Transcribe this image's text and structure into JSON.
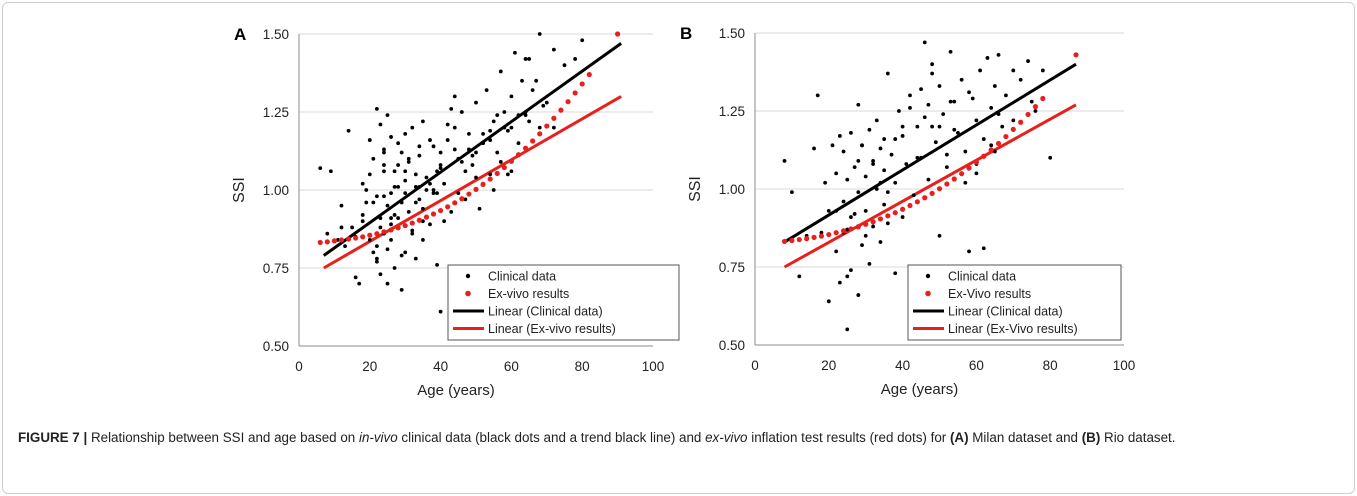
{
  "chart_data": [
    {
      "type": "scatter",
      "panel_letter": "A",
      "ylabel": "SSI",
      "xlabel": "Age (years)",
      "xlim": [
        0,
        100
      ],
      "ylim": [
        0.5,
        1.5
      ],
      "x_ticks": [
        "0",
        "20",
        "40",
        "60",
        "80",
        "100"
      ],
      "y_ticks": [
        "0.50",
        "0.75",
        "1.00",
        "1.25",
        "1.50"
      ],
      "grid": "horizontal",
      "legend_position": "bottom-right",
      "legend": [
        "Clinical data",
        "Ex-vivo results",
        "Linear (Clinical data)",
        "Linear (Ex-vivo results)"
      ],
      "series": [
        {
          "name": "Clinical data",
          "kind": "points",
          "color": "#000000",
          "x": [
            6,
            8,
            9,
            11,
            12,
            13,
            14,
            15,
            16,
            17,
            18,
            18,
            19,
            20,
            20,
            21,
            21,
            22,
            22,
            22,
            23,
            23,
            23,
            24,
            24,
            24,
            25,
            25,
            25,
            26,
            26,
            26,
            27,
            27,
            27,
            28,
            28,
            28,
            29,
            29,
            30,
            30,
            30,
            31,
            31,
            32,
            32,
            33,
            33,
            34,
            34,
            35,
            35,
            36,
            37,
            37,
            38,
            39,
            40,
            40,
            41,
            42,
            43,
            44,
            45,
            46,
            47,
            48,
            49,
            50,
            51,
            52,
            53,
            54,
            55,
            56,
            57,
            58,
            59,
            60,
            61,
            62,
            63,
            64,
            65,
            66,
            68,
            70,
            72,
            75,
            78,
            80,
            24,
            28,
            33,
            38,
            43,
            47,
            52,
            57,
            62,
            67,
            72,
            18,
            22,
            26,
            30,
            35,
            40,
            45,
            50,
            55,
            60,
            65,
            12,
            16,
            20,
            24,
            28,
            32,
            36,
            40,
            44,
            48,
            52,
            56,
            60,
            64,
            68,
            22,
            26,
            30,
            34,
            38,
            42,
            46,
            50,
            54,
            58,
            21,
            23,
            25,
            27,
            29,
            31,
            33,
            35,
            37,
            39,
            41,
            19,
            24,
            29,
            34,
            39,
            44,
            49,
            54,
            59,
            64,
            69
          ],
          "y": [
            1.07,
            0.86,
            1.06,
            0.84,
            0.95,
            0.82,
            1.19,
            0.88,
            0.72,
            0.7,
            1.02,
            0.9,
            0.96,
            1.16,
            0.84,
            1.1,
            0.8,
            1.26,
            0.77,
            0.98,
            1.21,
            0.91,
            0.73,
            1.08,
            0.86,
            1.13,
            0.95,
            0.7,
            1.24,
            1.17,
            0.84,
            0.99,
            1.06,
            0.92,
            0.75,
            1.01,
            0.88,
            1.15,
            0.68,
            0.96,
            1.18,
            1.03,
            0.8,
            0.93,
            1.1,
            0.86,
            1.2,
            1.05,
            0.78,
            0.97,
            1.14,
            1.22,
            0.9,
            1.04,
            0.89,
            1.16,
            0.99,
            0.76,
            1.08,
            0.61,
            1.02,
            1.21,
            0.93,
            1.3,
            1.1,
            1.25,
            0.97,
            1.18,
            1.08,
            1.28,
            0.94,
            1.15,
            1.32,
            1.05,
            1.22,
            1.12,
            1.38,
            1.2,
            1.05,
            1.3,
            1.44,
            1.15,
            1.35,
            1.25,
            1.42,
            1.32,
            1.5,
            1.28,
            1.45,
            1.4,
            1.42,
            1.48,
            0.98,
            1.08,
            1.01,
            1.14,
            1.26,
            1.06,
            1.18,
            1.09,
            1.24,
            1.35,
            1.2,
            0.92,
            0.78,
            0.89,
            0.99,
            0.94,
            1.12,
            0.99,
            1.04,
            1.0,
            1.2,
            1.22,
            0.88,
            0.85,
            1.05,
            1.12,
            0.91,
            0.87,
            1.0,
            1.07,
            1.2,
            1.13,
            1.02,
            1.24,
            1.06,
            1.42,
            1.2,
            0.82,
            0.91,
            1.06,
            1.11,
            1.0,
            1.16,
            1.09,
            1.12,
            1.19,
            1.25,
            0.96,
            0.88,
            0.81,
            1.01,
            0.79,
            1.09,
            0.96,
            0.84,
            1.02,
            0.99,
            0.9,
            1.0,
            1.06,
            1.12,
            1.01,
            1.06,
            1.13,
            1.11,
            1.16,
            1.19,
            1.24,
            1.27
          ]
        },
        {
          "name": "Ex-vivo results",
          "kind": "points",
          "color": "#e8201c",
          "x": [
            6,
            8,
            10,
            12,
            14,
            16,
            18,
            20,
            22,
            24,
            26,
            28,
            30,
            32,
            34,
            36,
            38,
            40,
            42,
            44,
            46,
            48,
            50,
            52,
            54,
            56,
            58,
            60,
            62,
            64,
            66,
            68,
            70,
            72,
            74,
            76,
            78,
            80,
            82,
            90
          ],
          "y": [
            0.832,
            0.834,
            0.837,
            0.84,
            0.843,
            0.846,
            0.85,
            0.855,
            0.86,
            0.866,
            0.872,
            0.879,
            0.886,
            0.894,
            0.903,
            0.913,
            0.923,
            0.934,
            0.946,
            0.959,
            0.972,
            0.987,
            1.002,
            1.018,
            1.035,
            1.053,
            1.072,
            1.092,
            1.113,
            1.134,
            1.157,
            1.18,
            1.205,
            1.23,
            1.256,
            1.283,
            1.311,
            1.34,
            1.37,
            1.5
          ]
        },
        {
          "name": "Linear (Clinical data)",
          "kind": "line",
          "color": "#000000",
          "x": [
            7,
            91
          ],
          "y": [
            0.79,
            1.47
          ]
        },
        {
          "name": "Linear (Ex-vivo results)",
          "kind": "line",
          "color": "#e8201c",
          "x": [
            7,
            91
          ],
          "y": [
            0.75,
            1.3
          ]
        }
      ]
    },
    {
      "type": "scatter",
      "panel_letter": "B",
      "ylabel": "SSI",
      "xlabel": "Age (years)",
      "xlim": [
        0,
        100
      ],
      "ylim": [
        0.5,
        1.5
      ],
      "x_ticks": [
        "0",
        "20",
        "40",
        "60",
        "80",
        "100"
      ],
      "y_ticks": [
        "0.50",
        "0.75",
        "1.00",
        "1.25",
        "1.50"
      ],
      "grid": "horizontal",
      "legend_position": "bottom-right",
      "legend": [
        "Clinical data",
        "Ex-Vivo results",
        "Linear (Clinical data)",
        "Linear (Ex-Vivo results)"
      ],
      "series": [
        {
          "name": "Clinical data",
          "kind": "points",
          "color": "#000000",
          "x": [
            8,
            10,
            12,
            14,
            16,
            17,
            18,
            19,
            20,
            20,
            21,
            22,
            22,
            23,
            23,
            24,
            24,
            25,
            25,
            25,
            26,
            26,
            27,
            27,
            28,
            28,
            28,
            29,
            29,
            30,
            30,
            31,
            31,
            32,
            32,
            33,
            33,
            34,
            34,
            35,
            35,
            36,
            36,
            37,
            38,
            38,
            39,
            40,
            40,
            41,
            42,
            43,
            44,
            45,
            46,
            47,
            47,
            48,
            49,
            50,
            50,
            51,
            52,
            53,
            54,
            55,
            56,
            57,
            58,
            59,
            60,
            61,
            62,
            63,
            64,
            65,
            66,
            67,
            68,
            70,
            72,
            74,
            76,
            78,
            25,
            30,
            35,
            40,
            45,
            50,
            55,
            60,
            65,
            70,
            75,
            80,
            22,
            28,
            34,
            46,
            52,
            58,
            64,
            26,
            32,
            38,
            44,
            48,
            54,
            60,
            66,
            24,
            29,
            36,
            42,
            48,
            53,
            57,
            62
          ],
          "y": [
            1.09,
            0.99,
            0.72,
            0.85,
            1.13,
            1.3,
            0.86,
            1.02,
            0.93,
            0.64,
            1.14,
            1.05,
            0.8,
            1.17,
            0.7,
            0.96,
            1.12,
            0.55,
            0.87,
            1.03,
            1.18,
            0.74,
            0.92,
            1.07,
            1.27,
            0.66,
            0.99,
            1.14,
            0.82,
            1.04,
            0.93,
            1.19,
            0.76,
            1.08,
            0.88,
            1.22,
            1.0,
            0.83,
            1.13,
            1.06,
            0.95,
            1.37,
            0.89,
            1.11,
            1.02,
            0.73,
            1.25,
            1.17,
            0.91,
            1.08,
            1.3,
            0.98,
            1.2,
            1.1,
            1.47,
            1.03,
            1.27,
            1.4,
            1.15,
            1.33,
            0.85,
            1.24,
            1.07,
            1.44,
            1.28,
            1.18,
            1.35,
            1.12,
            0.8,
            1.29,
            1.22,
            1.38,
            1.16,
            1.42,
            1.26,
            1.33,
            1.43,
            1.2,
            1.3,
            1.38,
            1.35,
            1.41,
            1.25,
            1.38,
            0.72,
            0.85,
            1.16,
            1.2,
            1.32,
            1.2,
            0.75,
            1.05,
            1.12,
            1.22,
            1.28,
            1.1,
            0.93,
            1.09,
            1.02,
            1.23,
            1.11,
            1.31,
            1.14,
            0.91,
            1.09,
            1.16,
            1.1,
            1.2,
            1.19,
            1.08,
            1.24,
            0.86,
            1.14,
            0.99,
            1.26,
            1.37,
            1.28,
            1.02,
            0.81
          ]
        },
        {
          "name": "Ex-Vivo results",
          "kind": "points",
          "color": "#e8201c",
          "x": [
            8,
            10,
            12,
            14,
            16,
            18,
            20,
            22,
            24,
            26,
            28,
            30,
            32,
            34,
            36,
            38,
            40,
            42,
            44,
            46,
            48,
            50,
            52,
            54,
            56,
            58,
            60,
            62,
            64,
            66,
            68,
            70,
            72,
            74,
            76,
            78,
            87
          ],
          "y": [
            0.832,
            0.835,
            0.838,
            0.841,
            0.845,
            0.849,
            0.854,
            0.86,
            0.866,
            0.872,
            0.879,
            0.887,
            0.895,
            0.904,
            0.914,
            0.924,
            0.935,
            0.947,
            0.959,
            0.972,
            0.986,
            1.001,
            1.016,
            1.032,
            1.049,
            1.067,
            1.086,
            1.105,
            1.125,
            1.146,
            1.168,
            1.191,
            1.214,
            1.239,
            1.264,
            1.29,
            1.43
          ]
        },
        {
          "name": "Linear (Clinical data)",
          "kind": "line",
          "color": "#000000",
          "x": [
            8,
            87
          ],
          "y": [
            0.83,
            1.4
          ]
        },
        {
          "name": "Linear (Ex-Vivo results)",
          "kind": "line",
          "color": "#e8201c",
          "x": [
            8,
            87
          ],
          "y": [
            0.75,
            1.27
          ]
        }
      ]
    }
  ],
  "caption": {
    "figure_label": "FIGURE 7 |",
    "parts": [
      " Relationship between SSI and age based on ",
      "in-vivo",
      " clinical data (black dots and a trend black line) and ",
      "ex-vivo",
      " inflation test results (red dots) for ",
      "(A)",
      " Milan dataset and ",
      "(B)",
      " Rio dataset."
    ]
  }
}
